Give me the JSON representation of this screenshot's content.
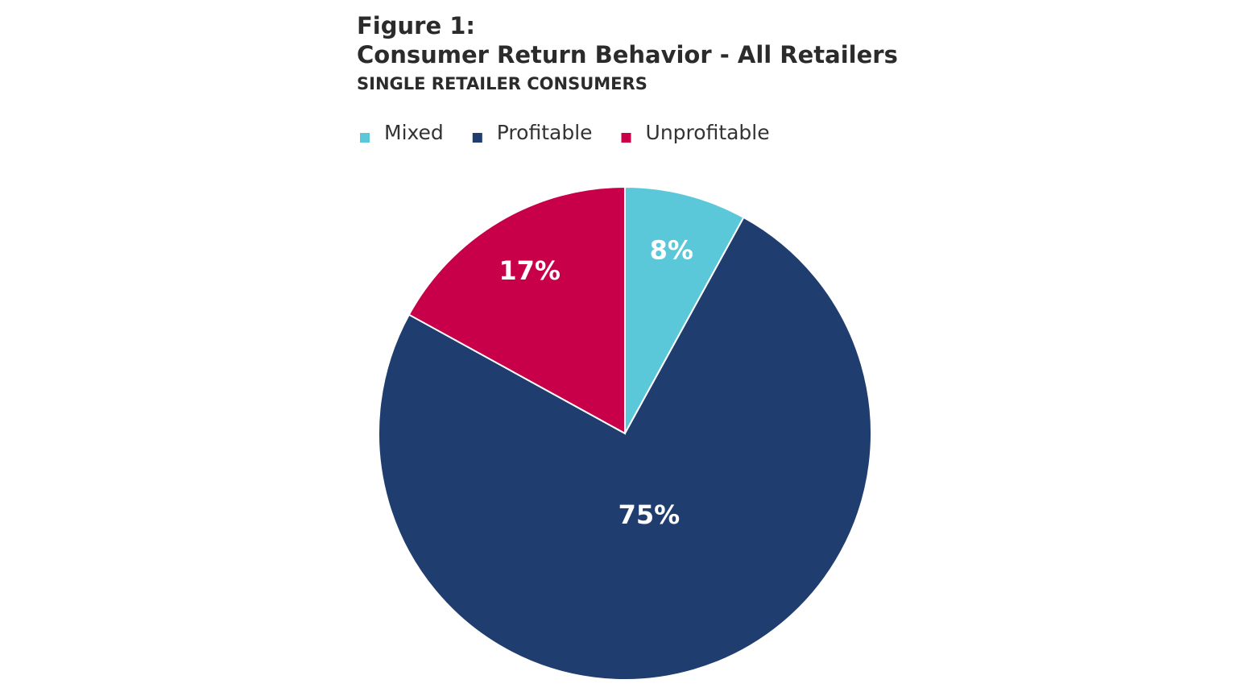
{
  "chart_data": {
    "type": "pie",
    "title": [
      "Figure 1:",
      "Consumer Return Behavior - All Retailers"
    ],
    "subtitle": "SINGLE RETAILER CONSUMERS",
    "categories": [
      "Mixed",
      "Profitable",
      "Unprofitable"
    ],
    "values": [
      8,
      75,
      17
    ],
    "value_labels": [
      "8%",
      "75%",
      "17%"
    ],
    "colors": [
      "#5bc8da",
      "#1f3d6e",
      "#c8004a"
    ],
    "legend": "top"
  }
}
